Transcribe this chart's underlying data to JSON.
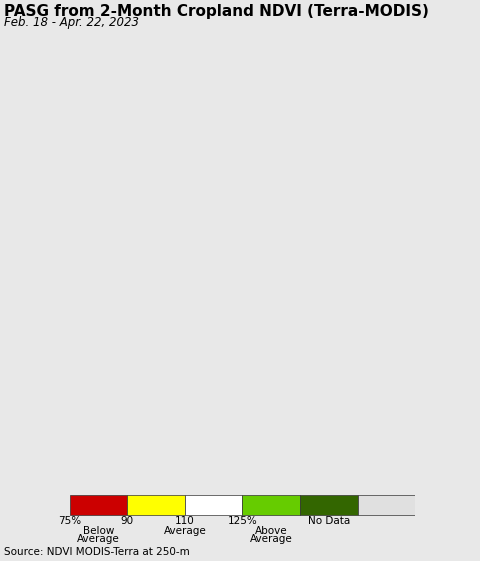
{
  "title": "PASG from 2-Month Cropland NDVI (Terra-MODIS)",
  "subtitle": "Feb. 18 - Apr. 22, 2023",
  "source_text": "Source: NDVI MODIS-Terra at 250-m",
  "title_fontsize": 11.0,
  "subtitle_fontsize": 8.5,
  "source_fontsize": 7.5,
  "background_color": "#e8e8e8",
  "ocean_color": "#b8dff0",
  "land_color": "#d8d8d8",
  "legend_colors": [
    "#cc0000",
    "#ffff00",
    "#ffffff",
    "#66cc00",
    "#336600",
    "#e0e0e0"
  ],
  "fig_width": 4.8,
  "fig_height": 5.61,
  "dpi": 100,
  "map_extent": [
    58,
    107,
    4,
    46
  ]
}
